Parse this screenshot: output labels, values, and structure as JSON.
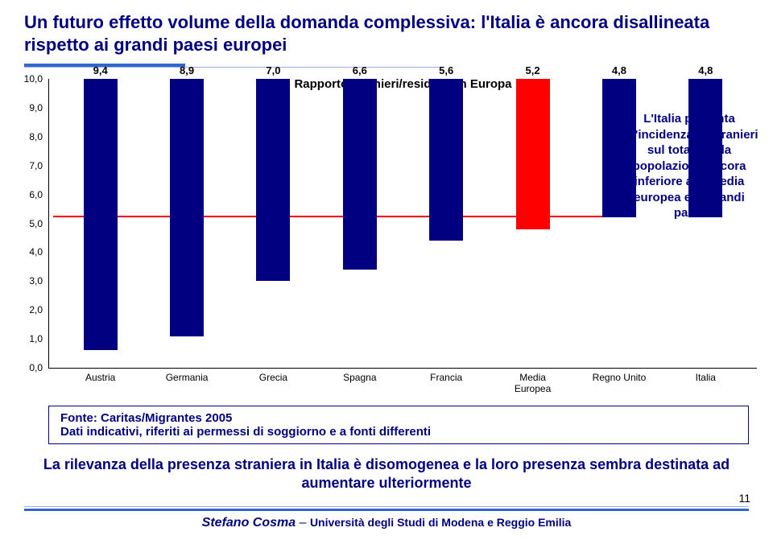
{
  "title": "Un futuro effetto volume della domanda complessiva: l'Italia è ancora disallineata rispetto ai grandi paesi europei",
  "title_fontsize": 22,
  "chart": {
    "type": "bar",
    "title": "Rapporto stranieri/residenti in Europa",
    "categories": [
      "Austria",
      "Germania",
      "Grecia",
      "Spagna",
      "Francia",
      "Media\nEuropea",
      "Regno Unito",
      "Italia"
    ],
    "values": [
      9.4,
      8.9,
      7.0,
      6.6,
      5.6,
      5.2,
      4.8,
      4.8
    ],
    "value_labels": [
      "9,4",
      "8,9",
      "7,0",
      "6,6",
      "5,6",
      "5,2",
      "4,8",
      "4,8"
    ],
    "highlight_index": 5,
    "bar_color": "#000080",
    "highlight_color": "#ff0000",
    "ylim": [
      0,
      10
    ],
    "ytick_step": 1.0,
    "yticks": [
      "0,0",
      "1,0",
      "2,0",
      "3,0",
      "4,0",
      "5,0",
      "6,0",
      "7,0",
      "8,0",
      "9,0",
      "10,0"
    ],
    "reference_line": {
      "value": 5.2,
      "color": "#ff0000"
    },
    "background_color": "#ffffff",
    "chart_title_fontsize": 15,
    "axis_label_fontsize": 12,
    "value_label_fontsize": 13
  },
  "annotation": "L'Italia presenta un'incidenza di stranieri sul totale della popolazione ancora inferiore alla media europea e ai grandi paesi",
  "source": {
    "line1": "Fonte: Caritas/Migrantes 2005",
    "line2": "Dati indicativi, riferiti ai permessi di soggiorno e a fonti differenti"
  },
  "bottom_text": "La rilevanza della presenza straniera in Italia è disomogenea e la loro presenza sembra destinata ad aumentare ulteriormente",
  "page_number": "11",
  "footer": {
    "author": "Stefano Cosma",
    "sep": " – ",
    "institution": "Università degli Studi di Modena e Reggio Emilia"
  },
  "colors": {
    "brand_blue": "#000080",
    "accent_blue": "#3366cc",
    "highlight_red": "#ff0000"
  }
}
